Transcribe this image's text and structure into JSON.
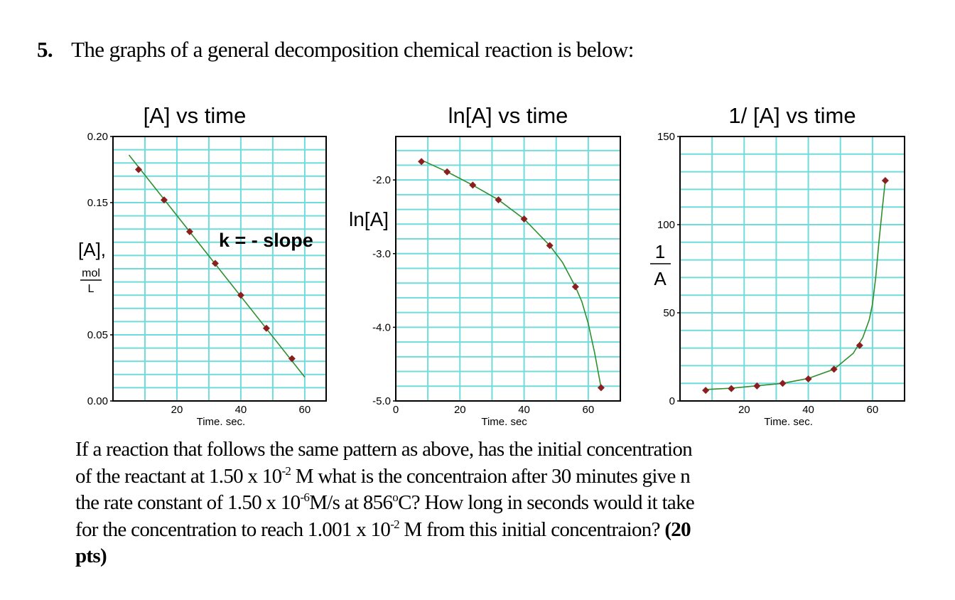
{
  "heading": {
    "number": "5.",
    "text": "The graphs of a general decomposition chemical reaction is below:"
  },
  "question": {
    "lines": [
      [
        {
          "text": "If a reaction that follows the same pattern as above, has the initial concentration"
        }
      ],
      [
        {
          "text": "of the reactant at 1.50 x 10"
        },
        {
          "text": "-2",
          "sup": true
        },
        {
          "text": " M what is the concentraion after 30 minutes give n"
        }
      ],
      [
        {
          "text": "the rate constant of 1.50 x 10"
        },
        {
          "text": "-6",
          "sup": true
        },
        {
          "text": "M/s at 856"
        },
        {
          "text": "o",
          "sup": true
        },
        {
          "text": "C? How long in seconds would it take"
        }
      ],
      [
        {
          "text": "for the concentration to reach 1.001 x 10"
        },
        {
          "text": "-2",
          "sup": true
        },
        {
          "text": " M from this initial concentraion? "
        },
        {
          "text": "(20",
          "bold": true
        }
      ],
      [
        {
          "text": "pts)",
          "bold": true
        }
      ]
    ]
  },
  "colors": {
    "grid": "#6fdcdc",
    "curve": "#2f8f2f",
    "marker": "#8b1e1e",
    "axis": "#000000"
  },
  "chart_data": [
    {
      "type": "line",
      "title": "[A]  vs time",
      "xlabel": "Time. sec.",
      "ylabel": "[A],",
      "ylabel_unit": {
        "numerator": "mol",
        "denominator": "L"
      },
      "annotation": "k = - slope",
      "xlim": [
        0,
        66.7
      ],
      "ylim": [
        0.0,
        0.2
      ],
      "xticks": [
        20,
        40,
        60
      ],
      "xtick_labels": [
        "20",
        "40",
        "60"
      ],
      "yticks": [
        0.0,
        0.05,
        0.15,
        0.2
      ],
      "ytick_labels": [
        "0.00",
        "0.05",
        "0.15",
        "0.20"
      ],
      "grid": true,
      "grid_x_step": 10,
      "grid_y_step": 0.01,
      "points": {
        "x": [
          8,
          16,
          24,
          32,
          40,
          48,
          56
        ],
        "y": [
          0.175,
          0.152,
          0.128,
          0.104,
          0.08,
          0.055,
          0.032
        ]
      },
      "curve": {
        "x": [
          5,
          60
        ],
        "y": [
          0.186,
          0.018
        ]
      }
    },
    {
      "type": "line",
      "title": "ln[A] vs time",
      "xlabel": "Time. sec",
      "ylabel": "ln[A]",
      "xlim": [
        0,
        70
      ],
      "ylim": [
        -5.0,
        -1.41
      ],
      "xticks": [
        0,
        20,
        40,
        60
      ],
      "xtick_labels": [
        "0",
        "20",
        "40",
        "60"
      ],
      "yticks": [
        -2.0,
        -3.0,
        -4.0,
        -5.0
      ],
      "ytick_labels": [
        "-2.0",
        "-3.0",
        "-4.0",
        "-5.0"
      ],
      "grid": true,
      "grid_x_step": 10,
      "grid_y_step": 0.2,
      "points": {
        "x": [
          8,
          16,
          24,
          32,
          40,
          48,
          56,
          64
        ],
        "y": [
          -1.75,
          -1.89,
          -2.07,
          -2.27,
          -2.53,
          -2.89,
          -3.45,
          -4.82
        ]
      },
      "curve": {
        "x": [
          9,
          16,
          24,
          32,
          40,
          48,
          52,
          56,
          58,
          60,
          62,
          64
        ],
        "y": [
          -1.75,
          -1.89,
          -2.07,
          -2.27,
          -2.53,
          -2.89,
          -3.12,
          -3.45,
          -3.65,
          -3.95,
          -4.35,
          -4.82
        ]
      }
    },
    {
      "type": "line",
      "title": "1/ [A] vs time",
      "xlabel": "Time. sec.",
      "ylabel": {
        "numerator": "1",
        "denominator": "A"
      },
      "xlim": [
        0,
        70
      ],
      "ylim": [
        0,
        150
      ],
      "xticks": [
        20,
        40,
        60
      ],
      "xtick_labels": [
        "20",
        "40",
        "60"
      ],
      "yticks": [
        0,
        50,
        100,
        150
      ],
      "ytick_labels": [
        "0",
        "50",
        "100",
        "150"
      ],
      "grid": true,
      "grid_x_step": 10,
      "grid_y_step": 10,
      "points": {
        "x": [
          8,
          16,
          24,
          32,
          40,
          48,
          56,
          64
        ],
        "y": [
          6,
          7,
          8.5,
          10,
          12.5,
          18,
          31.5,
          125
        ]
      },
      "curve": {
        "x": [
          8,
          16,
          24,
          32,
          40,
          48,
          54,
          57,
          59,
          60,
          61,
          62,
          63,
          64
        ],
        "y": [
          6.5,
          7.2,
          8.6,
          10,
          12.8,
          18,
          27,
          36,
          46,
          55,
          70,
          90,
          108,
          125
        ]
      }
    }
  ]
}
